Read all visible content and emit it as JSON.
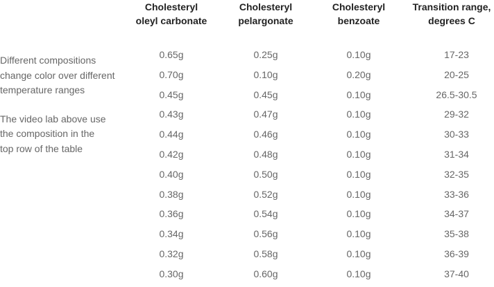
{
  "table": {
    "headers": [
      {
        "line1": "Cholesteryl",
        "line2": "oleyl carbonate"
      },
      {
        "line1": "Cholesteryl",
        "line2": "pelargonate"
      },
      {
        "line1": "Cholesteryl",
        "line2": "benzoate"
      },
      {
        "line1": "Transition range,",
        "line2": "degrees C"
      }
    ],
    "rows": [
      [
        "0.65g",
        "0.25g",
        "0.10g",
        "17-23"
      ],
      [
        "0.70g",
        "0.10g",
        "0.20g",
        "20-25"
      ],
      [
        "0.45g",
        "0.45g",
        "0.10g",
        "26.5-30.5"
      ],
      [
        "0.43g",
        "0.47g",
        "0.10g",
        "29-32"
      ],
      [
        "0.44g",
        "0.46g",
        "0.10g",
        "30-33"
      ],
      [
        "0.42g",
        "0.48g",
        "0.10g",
        "31-34"
      ],
      [
        "0.40g",
        "0.50g",
        "0.10g",
        "32-35"
      ],
      [
        "0.38g",
        "0.52g",
        "0.10g",
        "33-36"
      ],
      [
        "0.36g",
        "0.54g",
        "0.10g",
        "34-37"
      ],
      [
        "0.34g",
        "0.56g",
        "0.10g",
        "35-38"
      ],
      [
        "0.32g",
        "0.58g",
        "0.10g",
        "36-39"
      ],
      [
        "0.30g",
        "0.60g",
        "0.10g",
        "37-40"
      ]
    ]
  },
  "notes": {
    "paragraph1_line1": "Different compositions",
    "paragraph1_line2": "change color over different",
    "paragraph1_line3": "temperature ranges",
    "paragraph2_line1": "The video lab above use",
    "paragraph2_line2": "the composition in the",
    "paragraph2_line3": "top row of the table"
  },
  "colors": {
    "header_text": "#222222",
    "body_text": "#666666",
    "background": "#ffffff"
  }
}
